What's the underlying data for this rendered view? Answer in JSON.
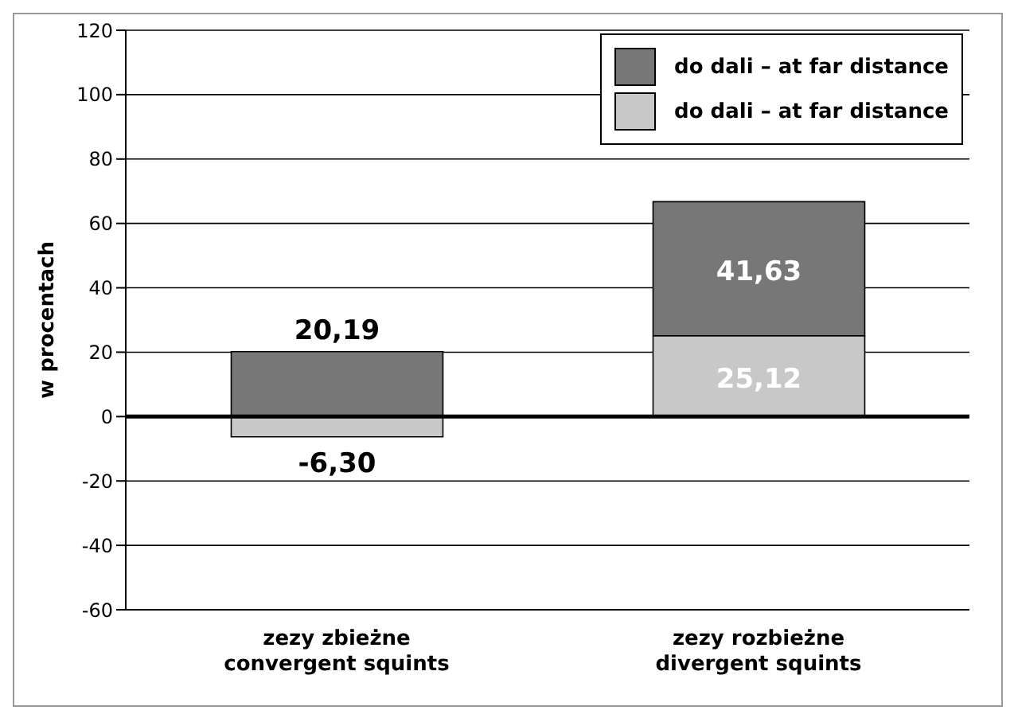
{
  "chart_data": {
    "type": "bar",
    "stacked": true,
    "ylabel": "w procentach",
    "categories": [
      "zezy zbieżne\nconvergent squints",
      "zezy rozbieżne\ndivergent squints"
    ],
    "series": [
      {
        "name": "do dali – at far distance",
        "color": "#c8c8c8",
        "values": [
          -6.3,
          25.12
        ],
        "value_labels": [
          "-6,30",
          "25,12"
        ]
      },
      {
        "name": "do dali – at far distance",
        "color": "#777777",
        "values": [
          20.19,
          41.63
        ],
        "value_labels": [
          "20,19",
          "41,63"
        ]
      }
    ],
    "ylim": [
      -60,
      120
    ],
    "yticks": [
      -60,
      -40,
      -20,
      0,
      20,
      40,
      60,
      80,
      100,
      120
    ],
    "grid": "y",
    "legend": "top right",
    "ref_lines": [
      {
        "axis": "y",
        "value": 0
      }
    ]
  }
}
